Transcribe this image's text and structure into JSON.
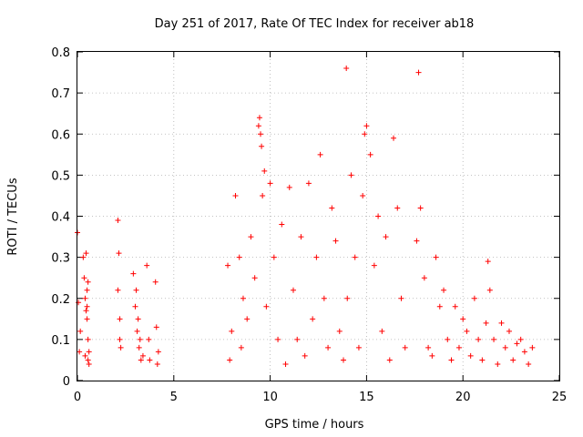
{
  "chart_data": {
    "type": "scatter",
    "title": "Day 251 of 2017, Rate Of TEC Index for receiver ab18",
    "xlabel": "GPS time / hours",
    "ylabel": "ROTI / TECUs",
    "xlim": [
      0,
      25
    ],
    "ylim": [
      0,
      0.8
    ],
    "xticks": [
      0,
      5,
      10,
      15,
      20,
      25
    ],
    "yticks": [
      0,
      0.1,
      0.2,
      0.3,
      0.4,
      0.5,
      0.6,
      0.7,
      0.8
    ],
    "xtick_labels": [
      "0",
      "5",
      "10",
      "15",
      "20",
      "25"
    ],
    "ytick_labels": [
      "0",
      "0.1",
      "0.2",
      "0.3",
      "0.4",
      "0.5",
      "0.6",
      "0.7",
      "0.8"
    ],
    "grid": true,
    "marker": "plus",
    "color": "#ff0000",
    "series": [
      {
        "x": [
          0.0,
          0.05,
          0.1,
          0.15,
          0.3,
          0.35,
          0.4,
          0.45,
          0.5,
          0.55,
          0.6,
          0.45,
          0.5,
          0.55,
          0.4,
          0.5,
          0.55,
          0.6,
          2.1,
          2.15,
          2.2,
          2.25,
          2.1,
          2.2,
          2.9,
          3.0,
          3.1,
          3.2,
          3.3,
          3.05,
          3.15,
          3.25,
          3.4,
          3.6,
          3.7,
          3.75,
          4.05,
          4.1,
          4.2,
          4.15,
          7.8,
          7.9,
          8.0,
          8.2,
          8.4,
          8.5,
          8.6,
          8.8,
          9.0,
          9.2,
          9.4,
          9.45,
          9.5,
          9.55,
          9.6,
          9.7,
          9.8,
          10.0,
          10.2,
          10.4,
          10.6,
          10.8,
          11.0,
          11.2,
          11.4,
          11.6,
          11.8,
          12.0,
          12.2,
          12.4,
          12.6,
          12.8,
          13.0,
          13.2,
          13.4,
          13.6,
          13.8,
          13.95,
          14.0,
          14.2,
          14.4,
          14.6,
          14.8,
          14.9,
          15.0,
          15.2,
          15.4,
          15.6,
          15.8,
          16.0,
          16.2,
          16.4,
          16.6,
          16.8,
          17.0,
          17.6,
          17.7,
          17.8,
          18.0,
          18.2,
          18.4,
          18.6,
          18.8,
          19.0,
          19.2,
          19.4,
          19.6,
          19.8,
          20.0,
          20.2,
          20.4,
          20.6,
          20.8,
          21.0,
          21.2,
          21.3,
          21.4,
          21.6,
          21.8,
          22.0,
          22.2,
          22.4,
          22.6,
          22.8,
          23.0,
          23.2,
          23.4,
          23.6
        ],
        "y": [
          0.36,
          0.19,
          0.07,
          0.12,
          0.3,
          0.25,
          0.2,
          0.17,
          0.15,
          0.05,
          0.04,
          0.31,
          0.22,
          0.1,
          0.06,
          0.18,
          0.24,
          0.07,
          0.39,
          0.31,
          0.15,
          0.08,
          0.22,
          0.1,
          0.26,
          0.18,
          0.12,
          0.08,
          0.05,
          0.22,
          0.15,
          0.1,
          0.06,
          0.28,
          0.1,
          0.05,
          0.24,
          0.13,
          0.07,
          0.04,
          0.28,
          0.05,
          0.12,
          0.45,
          0.3,
          0.08,
          0.2,
          0.15,
          0.35,
          0.25,
          0.62,
          0.64,
          0.6,
          0.57,
          0.45,
          0.51,
          0.18,
          0.48,
          0.3,
          0.1,
          0.38,
          0.04,
          0.47,
          0.22,
          0.1,
          0.35,
          0.06,
          0.48,
          0.15,
          0.3,
          0.55,
          0.2,
          0.08,
          0.42,
          0.34,
          0.12,
          0.05,
          0.76,
          0.2,
          0.5,
          0.3,
          0.08,
          0.45,
          0.6,
          0.62,
          0.55,
          0.28,
          0.4,
          0.12,
          0.35,
          0.05,
          0.59,
          0.42,
          0.2,
          0.08,
          0.34,
          0.75,
          0.42,
          0.25,
          0.08,
          0.06,
          0.3,
          0.18,
          0.22,
          0.1,
          0.05,
          0.18,
          0.08,
          0.15,
          0.12,
          0.06,
          0.2,
          0.1,
          0.05,
          0.14,
          0.29,
          0.22,
          0.1,
          0.04,
          0.14,
          0.08,
          0.12,
          0.05,
          0.09,
          0.1,
          0.07,
          0.04,
          0.08
        ]
      }
    ]
  }
}
